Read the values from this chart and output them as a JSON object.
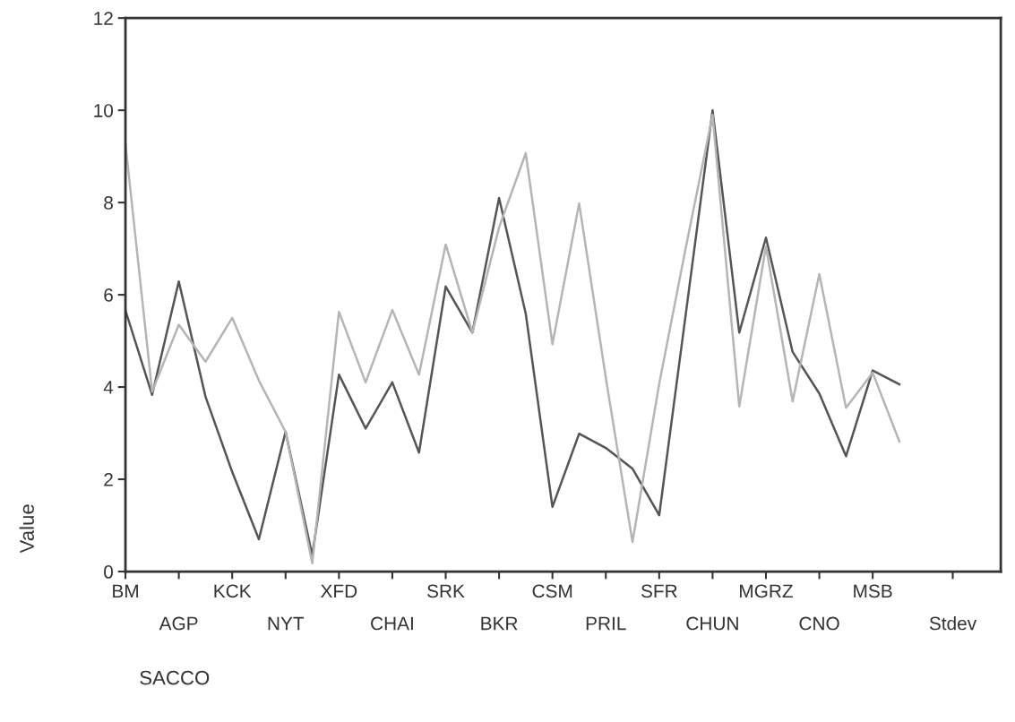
{
  "chart_data": {
    "type": "line",
    "xlabel": "SACCO",
    "ylabel": "Value",
    "categories": [
      "BM",
      null,
      "AGP",
      null,
      "KCK",
      null,
      "NYT",
      null,
      "XFD",
      null,
      "CHAI",
      null,
      "SRK",
      null,
      "BKR",
      null,
      "CSM",
      null,
      "PRIL",
      null,
      "SFR",
      null,
      "CHUN",
      null,
      "MGRZ",
      null,
      "CNO",
      null,
      "MSB",
      null,
      null,
      "Stdev"
    ],
    "series": [
      {
        "color": "#555555",
        "values": [
          5.66,
          3.83,
          6.29,
          3.79,
          2.16,
          0.7,
          3.03,
          0.35,
          4.27,
          3.1,
          4.1,
          2.58,
          6.18,
          5.18,
          8.1,
          5.59,
          1.4,
          2.99,
          2.68,
          2.23,
          1.22,
          5.6,
          10.0,
          5.18,
          7.24,
          4.76,
          3.86,
          2.5,
          4.36,
          4.06,
          null,
          null
        ]
      },
      {
        "color": "#b5b5b5",
        "values": [
          9.27,
          3.9,
          5.35,
          4.55,
          5.5,
          4.14,
          3.03,
          0.18,
          5.63,
          4.1,
          5.67,
          4.27,
          7.09,
          5.18,
          7.46,
          9.07,
          4.93,
          7.98,
          4.2,
          0.64,
          4.07,
          7.03,
          9.9,
          3.58,
          7.05,
          3.69,
          6.45,
          3.55,
          4.31,
          2.82,
          null,
          null
        ]
      }
    ],
    "ylim": [
      0,
      12
    ],
    "yticks": [
      0,
      2,
      4,
      6,
      8,
      10,
      12
    ],
    "grid": false,
    "legend": false
  }
}
